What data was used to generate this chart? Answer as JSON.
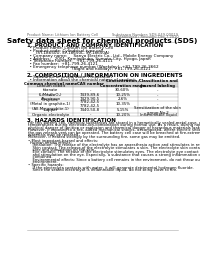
{
  "header_left": "Product Name: Lithium Ion Battery Cell",
  "header_right_line1": "Substance Number: SDS-049-00019",
  "header_right_line2": "Established / Revision: Dec.7.2010",
  "main_title": "Safety data sheet for chemical products (SDS)",
  "section1_title": "1. PRODUCT AND COMPANY IDENTIFICATION",
  "section1_items": [
    "  • Product name: Lithium Ion Battery Cell",
    "  • Product code: Cylindrical-type cell",
    "       (SY-18650U, SY-18650L, SY-18650A)",
    "  • Company name:     Sanyo Electric Co., Ltd., Mobile Energy Company",
    "  • Address:   2001, Kamionkubo, Sumoto-City, Hyogo, Japan",
    "  • Telephone number:   +81-799-26-4111",
    "  • Fax number:  +81-799-26-4121",
    "  • Emergency telephone number (Weekday): +81-799-26-3662",
    "                                    (Night and holiday): +81-799-26-4121"
  ],
  "section2_title": "2. COMPOSITION / INFORMATION ON INGREDIENTS",
  "section2_intro": "  • Substance or preparation: Preparation",
  "section2_sub": "  • Information about the chemical nature of product:",
  "table_headers": [
    "Common chemical name",
    "CAS number",
    "Concentration /\nConcentration range",
    "Classification and\nhazard labeling"
  ],
  "table_rows": [
    [
      "Lithium cobalt\ntitanate\n(LiMn₂CoO₄)",
      "-",
      "30-60%",
      "-"
    ],
    [
      "Iron",
      "7439-89-6",
      "10-25%",
      "-"
    ],
    [
      "Aluminum",
      "7429-90-5",
      "2-6%",
      "-"
    ],
    [
      "Graphite\n(Metal in graphite-1)\n(All-Mg graphite-1)",
      "7782-42-5\n7782-42-5",
      "10-35%",
      "-"
    ],
    [
      "Copper",
      "7440-50-8",
      "5-15%",
      "Sensitization of the skin\ngroup No.2"
    ],
    [
      "Organic electrolyte",
      "-",
      "10-20%",
      "Inflammable liquid"
    ]
  ],
  "section3_title": "3. HAZARDS IDENTIFICATION",
  "section3_para1": [
    "For this battery cell, chemical substances are stored in a hermetically sealed metal case, designed to withstand",
    "temperatures during electrode-ion-combination during normal use. As a result, during normal use, there is no",
    "physical danger of ignition or explosion and thermical danger of hazardous materials leakage.",
    "However, if exposed to a fire, added mechanical shocks, decomposed, where electric shocks may occur,",
    "the gas release vent can be operated. The battery cell case will be breached at fire-extreme, hazardous",
    "materials may be released.",
    "Moreover, if heated strongly by the surrounding fire, some gas may be emitted."
  ],
  "section3_bullet1_title": "• Most important hazard and effects:",
  "section3_bullet1_items": [
    "Human health effects:",
    "  Inhalation: The release of the electrolyte has an anaesthesia action and stimulates in respiratory tract.",
    "  Skin contact: The release of the electrolyte stimulates a skin. The electrolyte skin contact causes a",
    "  sore and stimulation on the skin.",
    "  Eye contact: The release of the electrolyte stimulates eyes. The electrolyte eye contact causes a sore",
    "  and stimulation on the eye. Especially, a substance that causes a strong inflammation of the eye is",
    "  contained.",
    "  Environmental effects: Since a battery cell remains in the environment, do not throw out it into the",
    "  environment."
  ],
  "section3_bullet2_title": "• Specific hazards:",
  "section3_bullet2_items": [
    "  If the electrolyte contacts with water, it will generate detrimental hydrogen fluoride.",
    "  Since the sealed electrolyte is inflammable liquid, do not bring close to fire."
  ],
  "bg_color": "#ffffff",
  "text_color": "#000000",
  "line_color": "#aaaaaa",
  "table_line_color": "#999999",
  "table_header_bg": "#d8d8d8",
  "header_font_size": 3.8,
  "title_font_size": 5.2,
  "section_font_size": 4.0,
  "body_font_size": 3.0,
  "table_font_size": 2.8
}
